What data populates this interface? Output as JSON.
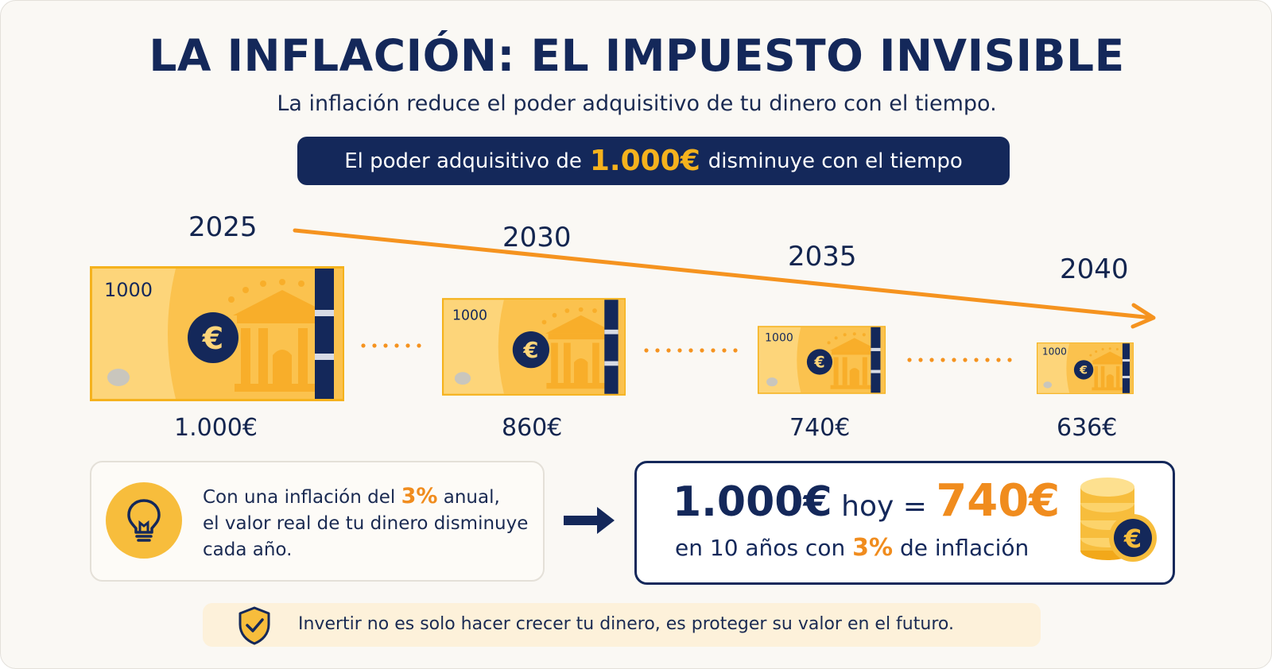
{
  "header": {
    "title": "LA INFLACIÓN: EL IMPUESTO INVISIBLE",
    "subtitle": "La inflación reduce el poder adquisitivo de tu dinero con el tiempo."
  },
  "banner": {
    "before": "El poder adquisitivo de",
    "amount": "1.000€",
    "after": "disminuye con el tiempo"
  },
  "timeline": [
    {
      "year": "2025",
      "value": "1.000€",
      "note_label": "1000",
      "remaining_fraction": 1.0
    },
    {
      "year": "2030",
      "value": "860€",
      "note_label": "1000",
      "remaining_fraction": 0.86
    },
    {
      "year": "2035",
      "value": "740€",
      "note_label": "1000",
      "remaining_fraction": 0.74
    },
    {
      "year": "2040",
      "value": "636€",
      "note_label": "1000",
      "remaining_fraction": 0.636
    }
  ],
  "info_box": {
    "line1_before": "Con una inflación del",
    "line1_rate": "3%",
    "line1_after": "anual,",
    "line2": "el valor real de tu dinero disminuye",
    "line3": "cada año."
  },
  "result_box": {
    "amount_today": "1.000€",
    "today_label": "hoy =",
    "amount_future": "740€",
    "line2_before": "en 10 años con",
    "line2_rate": "3%",
    "line2_after": "de inflación"
  },
  "footer": {
    "text": "Invertir no es solo hacer crecer tu dinero, es proteger su valor en el futuro."
  },
  "colors": {
    "navy": "#14285a",
    "orange": "#f08c1e",
    "gold": "#f5b21d",
    "note_yellow": "#fdd57a"
  },
  "icons": [
    "euro-icon",
    "lightbulb-icon",
    "arrow-right-icon",
    "coin-stack-icon",
    "shield-check-icon"
  ]
}
